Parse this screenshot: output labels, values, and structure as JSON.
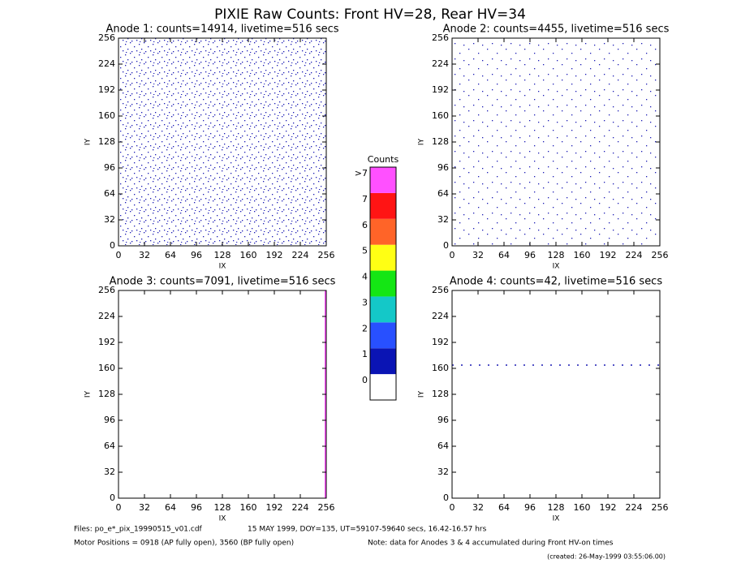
{
  "title": "PIXIE Raw Counts:  Front HV=28, Rear HV=34",
  "chart_data": [
    {
      "type": "heatmap",
      "title": "Anode 1: counts=14914, livetime=516 secs",
      "x_label": "IX",
      "y_label": "IY",
      "xlim": [
        0,
        256
      ],
      "ylim": [
        0,
        256
      ],
      "xticks": [
        0,
        32,
        64,
        96,
        128,
        160,
        192,
        224,
        256
      ],
      "yticks": [
        0,
        32,
        64,
        96,
        128,
        160,
        192,
        224,
        256
      ]
    },
    {
      "type": "heatmap",
      "title": "Anode 2: counts=4455, livetime=516 secs",
      "x_label": "IX",
      "y_label": "IY",
      "xlim": [
        0,
        256
      ],
      "ylim": [
        0,
        256
      ],
      "xticks": [
        0,
        32,
        64,
        96,
        128,
        160,
        192,
        224,
        256
      ],
      "yticks": [
        0,
        32,
        64,
        96,
        128,
        160,
        192,
        224,
        256
      ]
    },
    {
      "type": "heatmap",
      "title": "Anode 3: counts=7091, livetime=516 secs",
      "x_label": "IX",
      "y_label": "IY",
      "xlim": [
        0,
        256
      ],
      "ylim": [
        0,
        256
      ],
      "xticks": [
        0,
        32,
        64,
        96,
        128,
        160,
        192,
        224,
        256
      ],
      "yticks": [
        0,
        32,
        64,
        96,
        128,
        160,
        192,
        224,
        256
      ]
    },
    {
      "type": "heatmap",
      "title": "Anode 4: counts=42, livetime=516 secs",
      "x_label": "IX",
      "y_label": "IY",
      "xlim": [
        0,
        256
      ],
      "ylim": [
        0,
        256
      ],
      "xticks": [
        0,
        32,
        64,
        96,
        128,
        160,
        192,
        224,
        256
      ],
      "yticks": [
        0,
        32,
        64,
        96,
        128,
        160,
        192,
        224,
        256
      ]
    }
  ],
  "colorbar": {
    "title": "Counts",
    "labels": [
      "0",
      "1",
      "2",
      "3",
      "4",
      "5",
      "6",
      "7",
      ">7"
    ],
    "colors": [
      "#ffffff",
      "#0a14b4",
      "#2850ff",
      "#14c8c8",
      "#14e614",
      "#ffff14",
      "#ff6428",
      "#ff1414",
      "#ff50ff"
    ]
  },
  "footer": {
    "files": "Files: po_e*_pix_19990515_v01.cdf",
    "date": "15 MAY 1999, DOY=135, UT=59107-59640 secs, 16.42-16.57 hrs",
    "motor": "Motor Positions = 0918 (AP fully open), 3560 (BP fully open)",
    "note": "Note: data for Anodes 3 & 4 accumulated during Front HV-on times",
    "created": "(created: 26-May-1999 03:55:06.00)"
  }
}
